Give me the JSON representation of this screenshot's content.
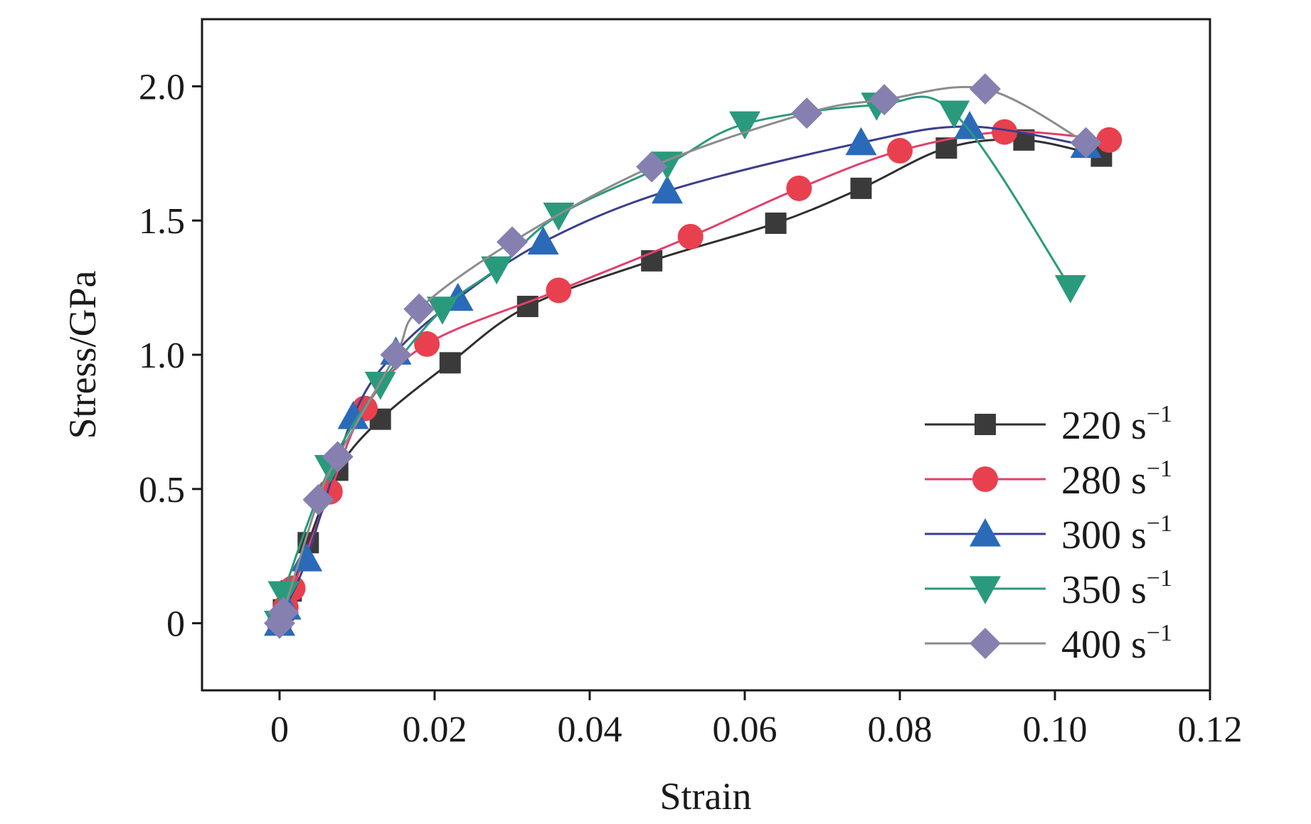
{
  "chart_data": {
    "type": "line",
    "xlabel": "Strain",
    "ylabel": "Stress/GPa",
    "xlim": [
      -0.01,
      0.12
    ],
    "ylim": [
      -0.25,
      2.25
    ],
    "xticks": [
      0,
      0.02,
      0.04,
      0.06,
      0.08,
      0.1,
      0.12
    ],
    "xtick_labels": [
      "0",
      "0.02",
      "0.04",
      "0.06",
      "0.08",
      "0.10",
      "0.12"
    ],
    "yticks": [
      0,
      0.5,
      1.0,
      1.5,
      2.0
    ],
    "ytick_labels": [
      "0",
      "0.5",
      "1.0",
      "1.5",
      "2.0"
    ],
    "grid": false,
    "legend_position": "bottom-right",
    "series": [
      {
        "name": "220 s",
        "name_sup": "−1",
        "marker": "square",
        "marker_color": "#3a3a3a",
        "line_color": "#2f2f2f",
        "points": [
          [
            0,
            0
          ],
          [
            0.0005,
            0.05
          ],
          [
            0.0015,
            0.12
          ],
          [
            0.0037,
            0.3
          ],
          [
            0.0075,
            0.57
          ],
          [
            0.013,
            0.76
          ],
          [
            0.022,
            0.97
          ],
          [
            0.032,
            1.18
          ],
          [
            0.048,
            1.35
          ],
          [
            0.064,
            1.49
          ],
          [
            0.075,
            1.62
          ],
          [
            0.086,
            1.77
          ],
          [
            0.096,
            1.8
          ],
          [
            0.106,
            1.74
          ]
        ]
      },
      {
        "name": "280 s",
        "name_sup": "−1",
        "marker": "circle",
        "marker_color": "#e8404f",
        "line_color": "#e0406a",
        "points": [
          [
            0,
            0
          ],
          [
            0.0008,
            0.06
          ],
          [
            0.0017,
            0.13
          ],
          [
            0.0065,
            0.49
          ],
          [
            0.011,
            0.8
          ],
          [
            0.019,
            1.04
          ],
          [
            0.036,
            1.24
          ],
          [
            0.053,
            1.44
          ],
          [
            0.067,
            1.62
          ],
          [
            0.08,
            1.76
          ],
          [
            0.0935,
            1.83
          ],
          [
            0.107,
            1.8
          ]
        ]
      },
      {
        "name": "300 s",
        "name_sup": "−1",
        "marker": "triangle-up",
        "marker_color": "#2a6ab8",
        "line_color": "#3b3e8c",
        "points": [
          [
            0,
            0
          ],
          [
            0.0008,
            0.06
          ],
          [
            0.0035,
            0.24
          ],
          [
            0.0095,
            0.77
          ],
          [
            0.015,
            1.01
          ],
          [
            0.023,
            1.21
          ],
          [
            0.034,
            1.42
          ],
          [
            0.05,
            1.61
          ],
          [
            0.075,
            1.79
          ],
          [
            0.089,
            1.85
          ],
          [
            0.104,
            1.78
          ]
        ]
      },
      {
        "name": "350 s",
        "name_sup": "−1",
        "marker": "triangle-down",
        "marker_color": "#2a9a7c",
        "line_color": "#2a9a7c",
        "points": [
          [
            0,
            0
          ],
          [
            0.0005,
            0.11
          ],
          [
            0.0065,
            0.58
          ],
          [
            0.013,
            0.89
          ],
          [
            0.021,
            1.17
          ],
          [
            0.028,
            1.32
          ],
          [
            0.036,
            1.52
          ],
          [
            0.05,
            1.71
          ],
          [
            0.06,
            1.86
          ],
          [
            0.077,
            1.93
          ],
          [
            0.087,
            1.9
          ],
          [
            0.102,
            1.25
          ]
        ]
      },
      {
        "name": "400 s",
        "name_sup": "−1",
        "marker": "diamond",
        "marker_color": "#8680b0",
        "line_color": "#8c8c8c",
        "points": [
          [
            0,
            0
          ],
          [
            0.0005,
            0.04
          ],
          [
            0.005,
            0.46
          ],
          [
            0.0075,
            0.62
          ],
          [
            0.015,
            1.0
          ],
          [
            0.018,
            1.17
          ],
          [
            0.03,
            1.42
          ],
          [
            0.048,
            1.7
          ],
          [
            0.068,
            1.9
          ],
          [
            0.078,
            1.95
          ],
          [
            0.091,
            1.99
          ],
          [
            0.104,
            1.79
          ]
        ]
      }
    ]
  }
}
